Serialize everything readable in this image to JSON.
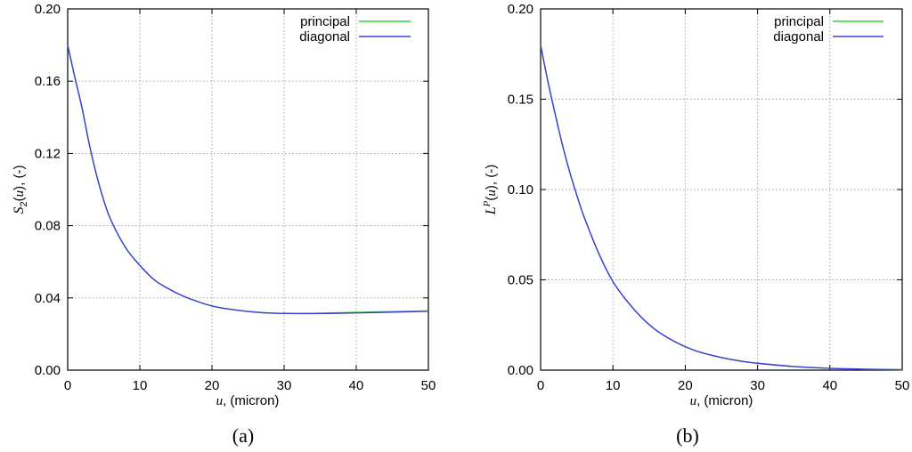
{
  "chart_data": [
    {
      "type": "line",
      "caption": "(a)",
      "xlabel": "u, (micron)",
      "ylabel": "S2(u), (-)",
      "xlim": [
        0,
        50
      ],
      "ylim": [
        0.0,
        0.2
      ],
      "xticks": [
        "0",
        "10",
        "20",
        "30",
        "40",
        "50"
      ],
      "yticks": [
        "0.00",
        "0.04",
        "0.08",
        "0.12",
        "0.16",
        "0.20"
      ],
      "grid": true,
      "legend_position": "top-right",
      "series": [
        {
          "name": "principal",
          "color": "#2ed32e",
          "x": [
            0,
            1,
            2,
            3,
            4,
            5,
            6,
            8,
            10,
            12,
            14,
            16,
            18,
            20,
            22,
            25,
            28,
            30,
            33,
            36,
            40,
            45,
            50
          ],
          "y": [
            0.18,
            0.162,
            0.145,
            0.125,
            0.108,
            0.094,
            0.083,
            0.068,
            0.058,
            0.05,
            0.045,
            0.041,
            0.038,
            0.0355,
            0.034,
            0.0325,
            0.0316,
            0.0314,
            0.0314,
            0.0316,
            0.032,
            0.0324,
            0.0328
          ]
        },
        {
          "name": "diagonal",
          "color": "#3d3dd6",
          "x": [
            0,
            1,
            2,
            3,
            4,
            5,
            6,
            8,
            10,
            12,
            14,
            16,
            18,
            20,
            22,
            25,
            28,
            30,
            33,
            36,
            40,
            45,
            50
          ],
          "y": [
            0.18,
            0.162,
            0.145,
            0.125,
            0.108,
            0.094,
            0.083,
            0.068,
            0.058,
            0.05,
            0.045,
            0.041,
            0.038,
            0.0355,
            0.034,
            0.0325,
            0.0316,
            0.0314,
            0.0313,
            0.0314,
            0.0317,
            0.0321,
            0.0326
          ]
        }
      ]
    },
    {
      "type": "line",
      "caption": "(b)",
      "xlabel": "u, (micron)",
      "ylabel": "LP(u), (-)",
      "xlim": [
        0,
        50
      ],
      "ylim": [
        0.0,
        0.2
      ],
      "xticks": [
        "0",
        "10",
        "20",
        "30",
        "40",
        "50"
      ],
      "yticks": [
        "0.00",
        "0.05",
        "0.10",
        "0.15",
        "0.20"
      ],
      "grid": true,
      "legend_position": "top-right",
      "series": [
        {
          "name": "principal",
          "color": "#2ed32e",
          "x": [
            0,
            1,
            2,
            3,
            4,
            5,
            6,
            8,
            10,
            12,
            14,
            16,
            18,
            20,
            22,
            25,
            28,
            30,
            35,
            40,
            45,
            50
          ],
          "y": [
            0.18,
            0.16,
            0.142,
            0.125,
            0.11,
            0.097,
            0.085,
            0.065,
            0.049,
            0.038,
            0.029,
            0.022,
            0.017,
            0.013,
            0.01,
            0.007,
            0.0048,
            0.0038,
            0.002,
            0.001,
            0.0005,
            0.0002
          ]
        },
        {
          "name": "diagonal",
          "color": "#3d3dd6",
          "x": [
            0,
            1,
            2,
            3,
            4,
            5,
            6,
            8,
            10,
            12,
            14,
            16,
            18,
            20,
            22,
            25,
            28,
            30,
            35,
            40,
            45,
            50
          ],
          "y": [
            0.18,
            0.16,
            0.142,
            0.125,
            0.11,
            0.097,
            0.085,
            0.065,
            0.049,
            0.038,
            0.029,
            0.022,
            0.017,
            0.013,
            0.01,
            0.007,
            0.0048,
            0.0038,
            0.002,
            0.001,
            0.0005,
            0.0002
          ]
        }
      ]
    }
  ]
}
